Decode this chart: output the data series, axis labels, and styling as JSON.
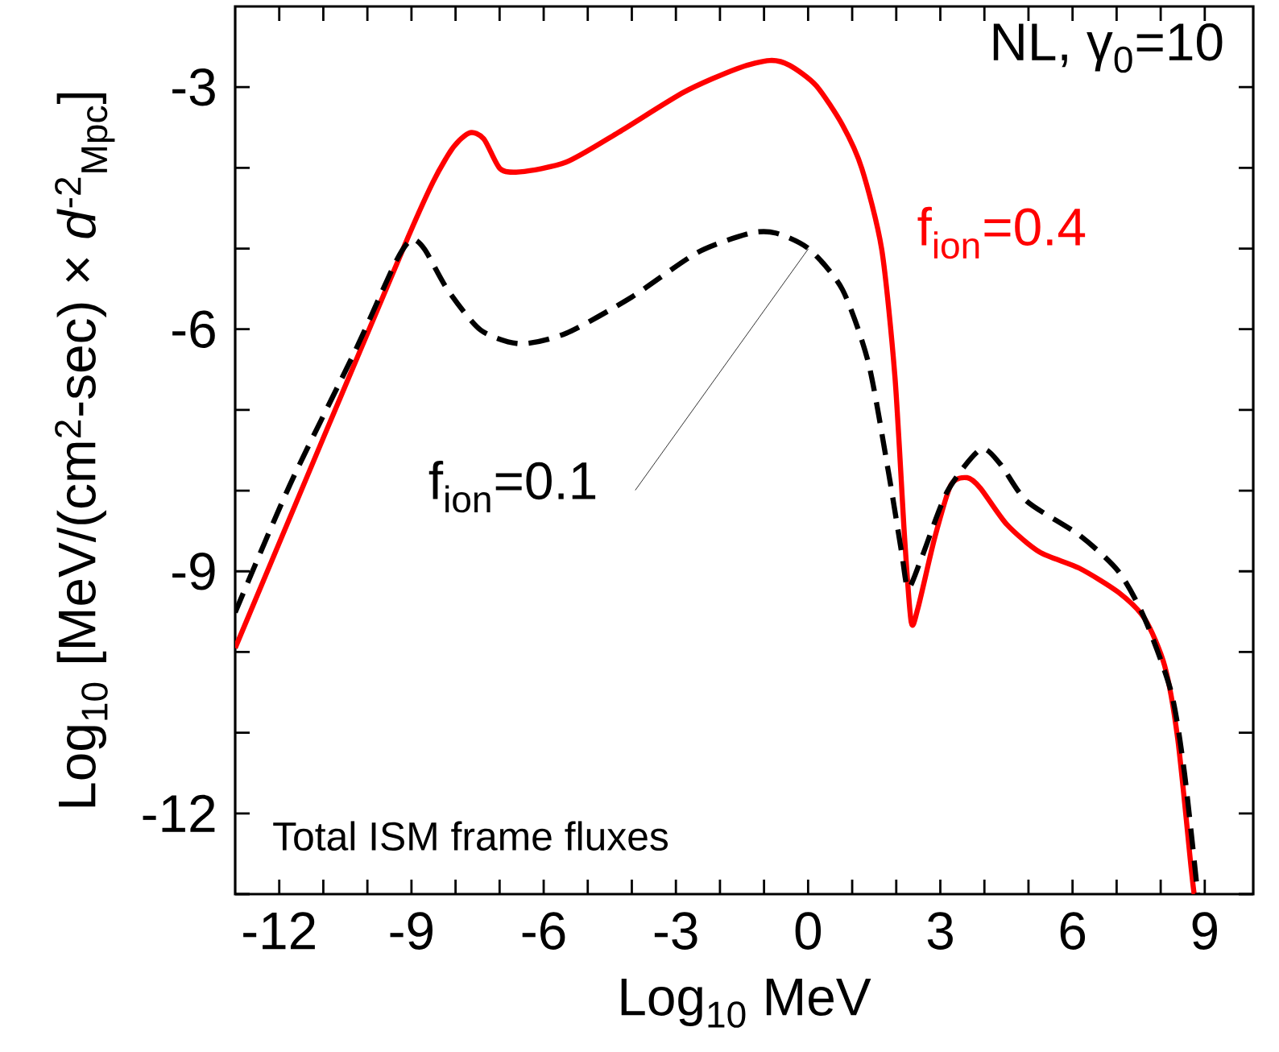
{
  "chart_data": {
    "type": "line",
    "xlabel": "Log$_{10}$ MeV",
    "ylabel": "Log$_{10}$ [MeV/(cm$^{2}$-sec) × *d*$^{-2}$$_{Mpc}$]",
    "annotations": [
      "NL, γ$_{0}$=10",
      "Total ISM frame fluxes"
    ],
    "xlim": [
      -13,
      10.1
    ],
    "ylim": [
      -13,
      -2
    ],
    "xticks": [
      -12,
      {
        "value": -11,
        "label": null
      },
      {
        "value": -10,
        "label": null
      },
      -9,
      {
        "value": -8,
        "label": null
      },
      {
        "value": -7,
        "label": null
      },
      -6,
      {
        "value": -5,
        "label": null
      },
      {
        "value": -4,
        "label": null
      },
      -3,
      {
        "value": -2,
        "label": null
      },
      {
        "value": -1,
        "label": null
      },
      0,
      {
        "value": 1,
        "label": null
      },
      {
        "value": 2,
        "label": null
      },
      3,
      {
        "value": 4,
        "label": null
      },
      {
        "value": 5,
        "label": null
      },
      6,
      {
        "value": 7,
        "label": null
      },
      {
        "value": 8,
        "label": null
      },
      9
    ],
    "yticks": [
      {
        "value": -13,
        "label": null
      },
      -12,
      {
        "value": -11,
        "label": null
      },
      {
        "value": -10,
        "label": null
      },
      -9,
      {
        "value": -8,
        "label": null
      },
      {
        "value": -7,
        "label": null
      },
      -6,
      {
        "value": -5,
        "label": null
      },
      {
        "value": -4,
        "label": null
      },
      -3
    ],
    "grid": false,
    "marker": "none",
    "series": [
      {
        "name": "f$_{ion}$=0.4",
        "color": "#ff0000",
        "line_style": "solid",
        "x": [
          -13,
          -9.07,
          -8.18,
          -7.7,
          -7.36,
          -6.99,
          -6.54,
          -5.49,
          -4.3,
          -2.81,
          -1.61,
          -0.87,
          -0.42,
          0.18,
          0.78,
          1.22,
          1.67,
          1.97,
          2.19,
          2.34,
          2.49,
          2.87,
          3.24,
          3.61,
          3.91,
          4.51,
          5.25,
          6.15,
          7.04,
          7.64,
          8.09,
          8.39,
          8.69,
          8.76
        ],
        "values": [
          -9.95,
          -4.85,
          -3.85,
          -3.57,
          -3.64,
          -4.01,
          -4.05,
          -3.93,
          -3.56,
          -3.06,
          -2.77,
          -2.67,
          -2.73,
          -2.98,
          -3.47,
          -4.01,
          -5.01,
          -6.59,
          -8.59,
          -9.63,
          -9.46,
          -8.59,
          -7.93,
          -7.84,
          -7.97,
          -8.42,
          -8.76,
          -8.96,
          -9.26,
          -9.59,
          -10.17,
          -11.09,
          -12.67,
          -13.0
        ]
      },
      {
        "name": "f$_{ion}$=0.1",
        "color": "#000000",
        "line_style": "dashed",
        "x": [
          -13,
          -11.76,
          -10.27,
          -9.37,
          -9.0,
          -8.7,
          -8.18,
          -7.43,
          -6.54,
          -5.49,
          -4.0,
          -2.51,
          -1.31,
          -0.72,
          0.03,
          0.78,
          1.37,
          1.82,
          2.12,
          2.27,
          2.57,
          3.16,
          3.91,
          4.36,
          4.96,
          6.15,
          7.04,
          7.64,
          8.24,
          8.54,
          8.84
        ],
        "values": [
          -9.51,
          -7.93,
          -6.26,
          -5.18,
          -4.89,
          -5.01,
          -5.51,
          -6.01,
          -6.18,
          -6.05,
          -5.6,
          -5.05,
          -4.81,
          -4.81,
          -5.01,
          -5.51,
          -6.42,
          -7.76,
          -8.76,
          -9.21,
          -8.84,
          -8.01,
          -7.49,
          -7.67,
          -8.13,
          -8.55,
          -9.0,
          -9.59,
          -10.5,
          -11.5,
          -13.0
        ]
      }
    ]
  }
}
